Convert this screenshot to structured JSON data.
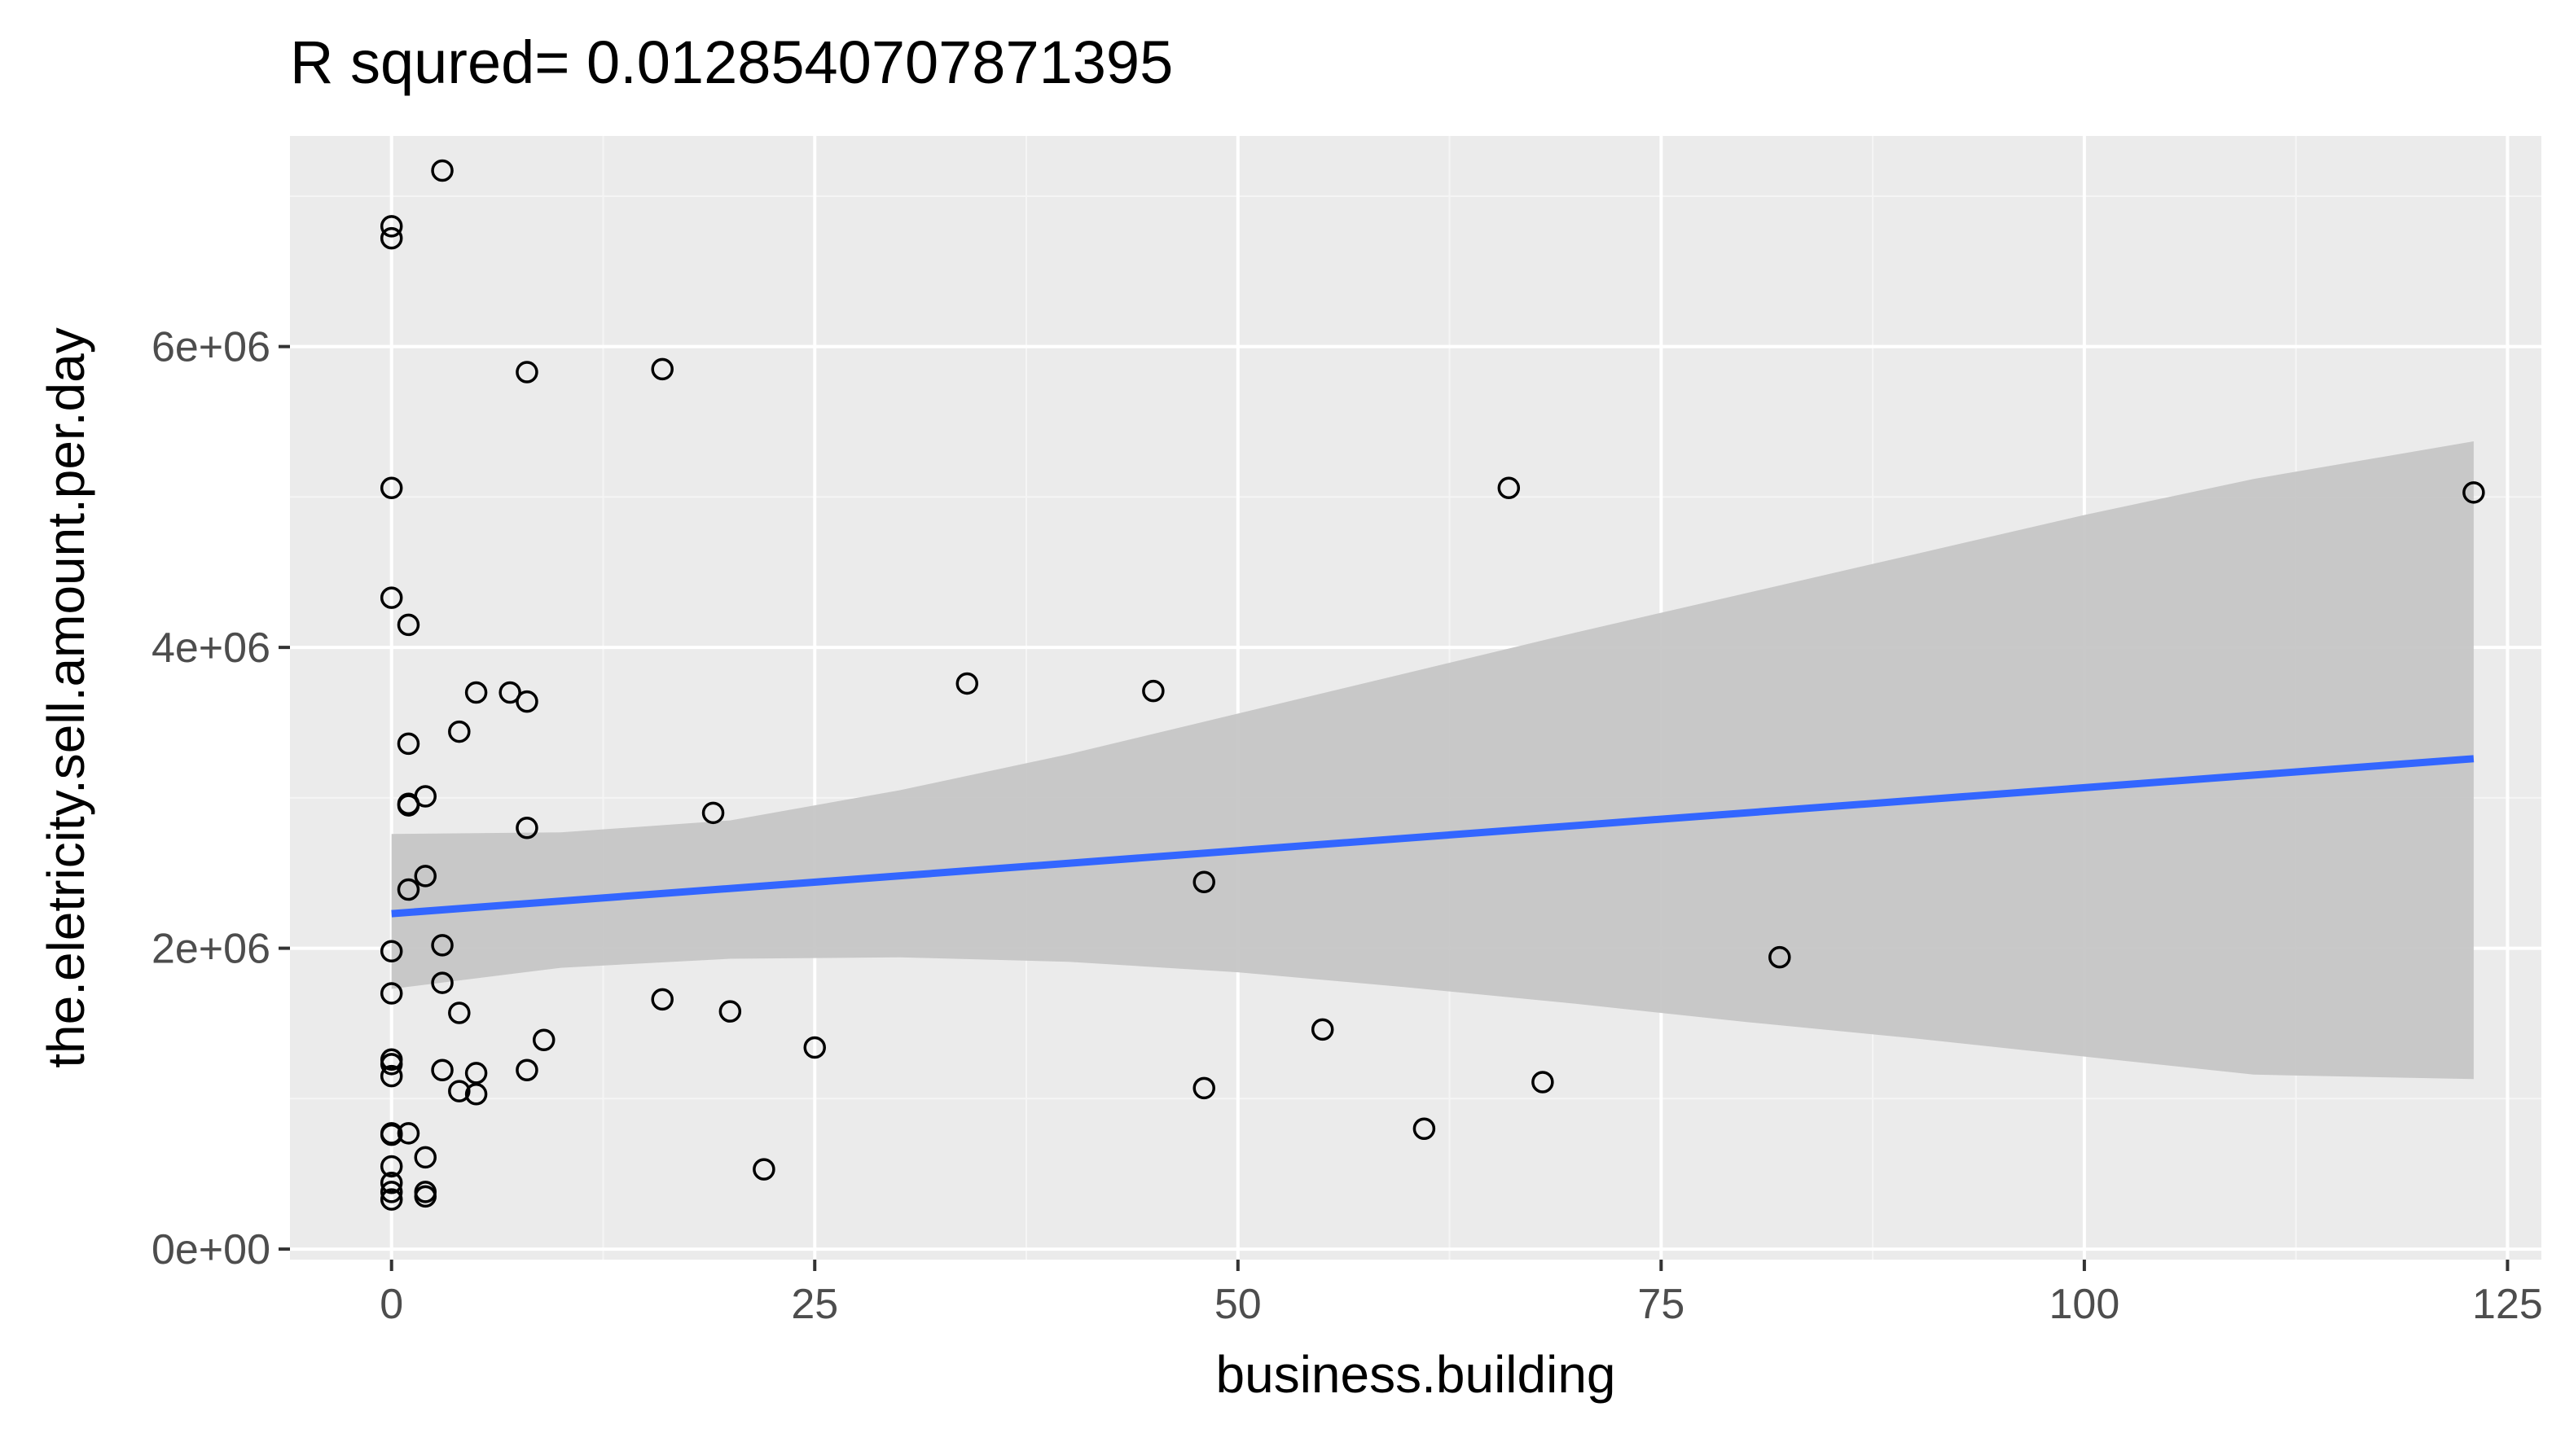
{
  "chart_data": {
    "type": "scatter",
    "title": "R squred= 0.0128540707871395",
    "xlabel": "business.building",
    "ylabel": "the.eletricity.sell.amount.per.day",
    "xlim": [
      -6,
      127
    ],
    "ylim": [
      -70000,
      7400000
    ],
    "x_ticks": [
      0,
      25,
      50,
      75,
      100,
      125
    ],
    "x_tick_labels": [
      "0",
      "25",
      "50",
      "75",
      "100",
      "125"
    ],
    "y_ticks": [
      0,
      2000000,
      4000000,
      6000000
    ],
    "y_tick_labels": [
      "0e+00",
      "2e+06",
      "4e+06",
      "6e+06"
    ],
    "grid": true,
    "legend": "none",
    "colors": {
      "panel_background": "#ebebeb",
      "grid_major": "#ffffff",
      "grid_minor": "#f5f5f5",
      "fit_line": "#3366ff",
      "ribbon": "#c4c4c4",
      "point_stroke": "#000000",
      "tick_text": "#4d4d4d"
    },
    "points": [
      {
        "x": 0,
        "y": 6800000
      },
      {
        "x": 0,
        "y": 6720000
      },
      {
        "x": 3,
        "y": 7170000
      },
      {
        "x": 0,
        "y": 5060000
      },
      {
        "x": 0,
        "y": 4330000
      },
      {
        "x": 1,
        "y": 4150000
      },
      {
        "x": 8,
        "y": 5830000
      },
      {
        "x": 16,
        "y": 5850000
      },
      {
        "x": 66,
        "y": 5060000
      },
      {
        "x": 123,
        "y": 5030000
      },
      {
        "x": 5,
        "y": 3700000
      },
      {
        "x": 7,
        "y": 3700000
      },
      {
        "x": 8,
        "y": 3640000
      },
      {
        "x": 4,
        "y": 3440000
      },
      {
        "x": 1,
        "y": 3360000
      },
      {
        "x": 34,
        "y": 3760000
      },
      {
        "x": 45,
        "y": 3710000
      },
      {
        "x": 2,
        "y": 3010000
      },
      {
        "x": 1,
        "y": 2960000
      },
      {
        "x": 1,
        "y": 2950000
      },
      {
        "x": 19,
        "y": 2900000
      },
      {
        "x": 8,
        "y": 2800000
      },
      {
        "x": 2,
        "y": 2480000
      },
      {
        "x": 1,
        "y": 2390000
      },
      {
        "x": 48,
        "y": 2440000
      },
      {
        "x": 0,
        "y": 1980000
      },
      {
        "x": 3,
        "y": 2020000
      },
      {
        "x": 82,
        "y": 1940000
      },
      {
        "x": 0,
        "y": 1700000
      },
      {
        "x": 3,
        "y": 1770000
      },
      {
        "x": 16,
        "y": 1660000
      },
      {
        "x": 20,
        "y": 1580000
      },
      {
        "x": 4,
        "y": 1570000
      },
      {
        "x": 55,
        "y": 1460000
      },
      {
        "x": 9,
        "y": 1390000
      },
      {
        "x": 25,
        "y": 1340000
      },
      {
        "x": 0,
        "y": 1260000
      },
      {
        "x": 0,
        "y": 1230000
      },
      {
        "x": 0,
        "y": 1150000
      },
      {
        "x": 3,
        "y": 1190000
      },
      {
        "x": 5,
        "y": 1170000
      },
      {
        "x": 8,
        "y": 1190000
      },
      {
        "x": 4,
        "y": 1050000
      },
      {
        "x": 5,
        "y": 1030000
      },
      {
        "x": 48,
        "y": 1070000
      },
      {
        "x": 68,
        "y": 1110000
      },
      {
        "x": 0,
        "y": 770000
      },
      {
        "x": 0,
        "y": 760000
      },
      {
        "x": 1,
        "y": 770000
      },
      {
        "x": 61,
        "y": 800000
      },
      {
        "x": 2,
        "y": 610000
      },
      {
        "x": 0,
        "y": 550000
      },
      {
        "x": 22,
        "y": 530000
      },
      {
        "x": 0,
        "y": 440000
      },
      {
        "x": 0,
        "y": 380000
      },
      {
        "x": 2,
        "y": 380000
      },
      {
        "x": 2,
        "y": 350000
      },
      {
        "x": 0,
        "y": 330000
      }
    ],
    "fit_line": {
      "x": [
        0,
        123
      ],
      "y": [
        2230000,
        3260000
      ]
    },
    "confidence_band": {
      "x": [
        0,
        10,
        20,
        30,
        40,
        50,
        60,
        70,
        80,
        90,
        100,
        110,
        123
      ],
      "upper": [
        2760000,
        2770000,
        2850000,
        3050000,
        3290000,
        3560000,
        3830000,
        4100000,
        4360000,
        4620000,
        4880000,
        5120000,
        5370000
      ],
      "lower": [
        1730000,
        1870000,
        1930000,
        1940000,
        1910000,
        1840000,
        1740000,
        1630000,
        1510000,
        1400000,
        1280000,
        1160000,
        1130000
      ]
    }
  }
}
